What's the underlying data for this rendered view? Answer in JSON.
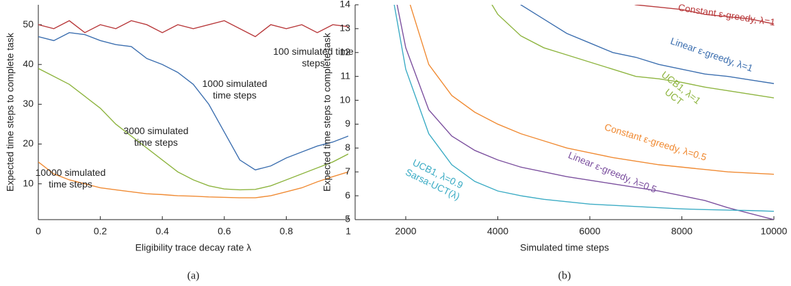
{
  "chart_data": [
    {
      "type": "line",
      "caption": "(a)",
      "x_label": "Eligibility trace decay rate λ",
      "y_label": "Expected time steps to complete task",
      "x": [
        0,
        0.05,
        0.1,
        0.15,
        0.2,
        0.25,
        0.3,
        0.35,
        0.4,
        0.45,
        0.5,
        0.55,
        0.6,
        0.65,
        0.7,
        0.75,
        0.8,
        0.85,
        0.9,
        0.95,
        1
      ],
      "xlim": [
        0,
        1
      ],
      "xticks": [
        0,
        0.2,
        0.4,
        0.6,
        0.8,
        1
      ],
      "ylim": [
        1,
        55
      ],
      "yticks": [
        10,
        20,
        30,
        40,
        50
      ],
      "series": [
        {
          "name": "100 simulated time steps",
          "color": "#b8393b",
          "values": [
            50,
            49,
            51,
            48,
            50,
            49,
            51,
            50,
            48,
            50,
            49,
            50,
            51,
            49,
            47,
            50,
            49,
            50,
            48,
            50,
            49.5
          ]
        },
        {
          "name": "1000 simulated time steps",
          "color": "#3b6eaf",
          "values": [
            47,
            46,
            48,
            47.5,
            46,
            45,
            44.5,
            41.5,
            40,
            38,
            35,
            30,
            23,
            16,
            13.5,
            14.5,
            16.5,
            18,
            19.5,
            20.5,
            22
          ]
        },
        {
          "name": "3000 simulated time steps",
          "color": "#8db43e",
          "values": [
            39,
            37,
            35,
            32,
            29,
            25,
            22,
            19,
            16,
            13,
            11,
            9.5,
            8.7,
            8.5,
            8.6,
            9.5,
            11,
            12.5,
            14,
            15.5,
            17.5
          ]
        },
        {
          "name": "10000 simulated time steps",
          "color": "#f08a32",
          "values": [
            15.5,
            12.5,
            11,
            10,
            9,
            8.5,
            8,
            7.5,
            7.3,
            7,
            6.9,
            6.7,
            6.6,
            6.5,
            6.5,
            7,
            8,
            9,
            10.5,
            11.8,
            13
          ]
        }
      ]
    },
    {
      "type": "line",
      "caption": "(b)",
      "x_label": "Simulated time steps",
      "y_label": "Expected time steps to complete task",
      "x": [
        1750,
        2000,
        2500,
        3000,
        3500,
        4000,
        4500,
        5000,
        5500,
        6000,
        6500,
        7000,
        7500,
        8000,
        8500,
        9000,
        9500,
        10000
      ],
      "xlim": [
        900,
        10000
      ],
      "xticks": [
        2000,
        4000,
        6000,
        8000,
        10000
      ],
      "ylim": [
        5,
        14
      ],
      "yticks": [
        5,
        6,
        7,
        8,
        9,
        10,
        11,
        12,
        13,
        14
      ],
      "series": [
        {
          "name": "Constant ε-greedy, λ=1",
          "color": "#b8393b",
          "values": [
            null,
            null,
            null,
            null,
            null,
            null,
            null,
            null,
            null,
            null,
            14.3,
            14.0,
            13.9,
            13.8,
            13.6,
            13.5,
            13.4,
            13.2
          ]
        },
        {
          "name": "Linear ε-greedy, λ=1",
          "color": "#3b6eaf",
          "values": [
            null,
            null,
            null,
            null,
            null,
            15,
            14,
            13.4,
            12.8,
            12.4,
            12.0,
            11.8,
            11.5,
            11.3,
            11.1,
            11.0,
            10.85,
            10.7
          ]
        },
        {
          "name": "UCB1, λ=1 UCT",
          "color": "#8db43e",
          "values": [
            null,
            null,
            null,
            null,
            15.2,
            13.6,
            12.7,
            12.2,
            11.9,
            11.6,
            11.3,
            11.0,
            10.9,
            10.75,
            10.55,
            10.4,
            10.25,
            10.1
          ]
        },
        {
          "name": "Constant ε-greedy, λ=0.5",
          "color": "#f08a32",
          "values": [
            null,
            14.6,
            11.5,
            10.2,
            9.5,
            9.0,
            8.6,
            8.3,
            8.0,
            7.8,
            7.6,
            7.45,
            7.3,
            7.2,
            7.1,
            7.0,
            6.95,
            6.9
          ]
        },
        {
          "name": "Linear ε-greedy, λ=0.5",
          "color": "#7b4f9e",
          "values": [
            14.6,
            12.2,
            9.6,
            8.5,
            7.9,
            7.5,
            7.2,
            7.0,
            6.8,
            6.65,
            6.5,
            6.35,
            6.2,
            6.0,
            5.8,
            5.5,
            5.25,
            5.0
          ]
        },
        {
          "name": "UCB1, λ=0.9 Sarsa-UCT(λ)",
          "color": "#3aabc4",
          "values": [
            14,
            11.3,
            8.6,
            7.3,
            6.6,
            6.2,
            6.0,
            5.85,
            5.75,
            5.65,
            5.6,
            5.55,
            5.5,
            5.45,
            5.42,
            5.4,
            5.38,
            5.35
          ]
        }
      ]
    }
  ]
}
